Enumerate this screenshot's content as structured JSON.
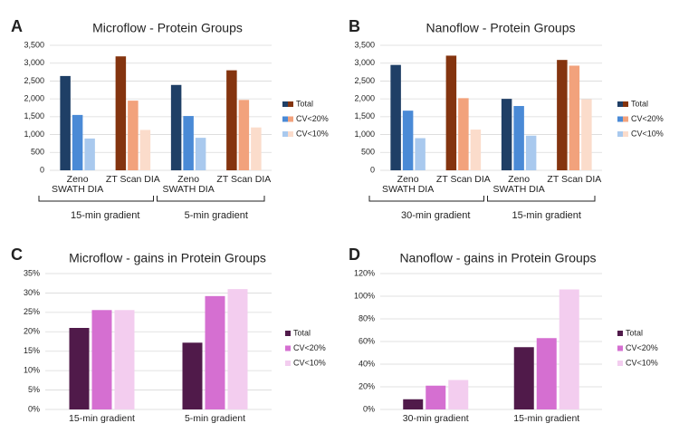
{
  "chart_data": [
    {
      "type": "bar",
      "panel": "A",
      "title": "Microflow - Protein Groups",
      "categories": [
        "Zeno SWATH DIA",
        "ZT Scan DIA",
        "Zeno SWATH DIA",
        "ZT Scan DIA"
      ],
      "groups": [
        "15-min gradient",
        "5-min gradient"
      ],
      "series": [
        {
          "name": "Total",
          "colors": [
            "#1f3f66",
            "#84340f",
            "#1f3f66",
            "#84340f"
          ],
          "values": [
            2640,
            3190,
            2390,
            2800
          ]
        },
        {
          "name": "CV<20%",
          "colors": [
            "#4a8ad6",
            "#f2a27c",
            "#4a8ad6",
            "#f2a27c"
          ],
          "values": [
            1550,
            1950,
            1520,
            1970
          ]
        },
        {
          "name": "CV<10%",
          "colors": [
            "#a9c9ee",
            "#fbdccb",
            "#a9c9ee",
            "#fbdccb"
          ],
          "values": [
            890,
            1130,
            910,
            1200
          ]
        }
      ],
      "ylim": [
        0,
        3500
      ],
      "yticks": [
        0,
        500,
        {
          "value": 1000,
          "label": "1,000"
        },
        {
          "value": 1500,
          "label": "1,500"
        },
        {
          "value": 2000,
          "label": "2,000"
        },
        {
          "value": 2500,
          "label": "2,500"
        },
        {
          "value": 3000,
          "label": "3,000"
        },
        {
          "value": 3500,
          "label": "3,500"
        }
      ],
      "grid": true
    },
    {
      "type": "bar",
      "panel": "B",
      "title": "Nanoflow - Protein Groups",
      "categories": [
        "Zeno SWATH DIA",
        "ZT Scan DIA",
        "Zeno SWATH DIA",
        "ZT Scan DIA"
      ],
      "groups": [
        "30-min gradient",
        "15-min gradient"
      ],
      "series": [
        {
          "name": "Total",
          "colors": [
            "#1f3f66",
            "#84340f",
            "#1f3f66",
            "#84340f"
          ],
          "values": [
            2950,
            3210,
            2000,
            3090
          ]
        },
        {
          "name": "CV<20%",
          "colors": [
            "#4a8ad6",
            "#f2a27c",
            "#4a8ad6",
            "#f2a27c"
          ],
          "values": [
            1670,
            2020,
            1800,
            2930
          ]
        },
        {
          "name": "CV<10%",
          "colors": [
            "#a9c9ee",
            "#fbdccb",
            "#a9c9ee",
            "#fbdccb"
          ],
          "values": [
            900,
            1140,
            970,
            1990
          ]
        }
      ],
      "ylim": [
        0,
        3500
      ],
      "yticks": [
        0,
        500,
        {
          "value": 1000,
          "label": "1,000"
        },
        {
          "value": 1500,
          "label": "1,500"
        },
        {
          "value": 2000,
          "label": "2,000"
        },
        {
          "value": 2500,
          "label": "2,500"
        },
        {
          "value": 3000,
          "label": "3,000"
        },
        {
          "value": 3500,
          "label": "3,500"
        }
      ],
      "grid": true
    },
    {
      "type": "bar",
      "panel": "C",
      "title": "Microflow - gains in Protein Groups",
      "categories": [
        "15-min gradient",
        "5-min gradient"
      ],
      "series": [
        {
          "name": "Total",
          "colors": [
            "#501a4a",
            "#501a4a"
          ],
          "values": [
            21,
            17.2
          ]
        },
        {
          "name": "CV<20%",
          "colors": [
            "#d56fd1",
            "#d56fd1"
          ],
          "values": [
            25.6,
            29.2
          ]
        },
        {
          "name": "CV<10%",
          "colors": [
            "#f3cdef",
            "#f3cdef"
          ],
          "values": [
            25.6,
            31
          ]
        }
      ],
      "ylim": [
        0,
        35
      ],
      "yticks": [
        {
          "value": 0,
          "label": "0%"
        },
        {
          "value": 5,
          "label": "5%"
        },
        {
          "value": 10,
          "label": "10%"
        },
        {
          "value": 15,
          "label": "15%"
        },
        {
          "value": 20,
          "label": "20%"
        },
        {
          "value": 25,
          "label": "25%"
        },
        {
          "value": 30,
          "label": "30%"
        },
        {
          "value": 35,
          "label": "35%"
        }
      ],
      "grid": true
    },
    {
      "type": "bar",
      "panel": "D",
      "title": "Nanoflow - gains in Protein Groups",
      "categories": [
        "30-min gradient",
        "15-min gradient"
      ],
      "series": [
        {
          "name": "Total",
          "colors": [
            "#501a4a",
            "#501a4a"
          ],
          "values": [
            9,
            55
          ]
        },
        {
          "name": "CV<20%",
          "colors": [
            "#d56fd1",
            "#d56fd1"
          ],
          "values": [
            21,
            63
          ]
        },
        {
          "name": "CV<10%",
          "colors": [
            "#f3cdef",
            "#f3cdef"
          ],
          "values": [
            26,
            106
          ]
        }
      ],
      "ylim": [
        0,
        120
      ],
      "yticks": [
        {
          "value": 0,
          "label": "0%"
        },
        {
          "value": 20,
          "label": "20%"
        },
        {
          "value": 40,
          "label": "40%"
        },
        {
          "value": 60,
          "label": "60%"
        },
        {
          "value": 80,
          "label": "80%"
        },
        {
          "value": 100,
          "label": "100%"
        },
        {
          "value": 120,
          "label": "120%"
        }
      ],
      "grid": true
    }
  ]
}
